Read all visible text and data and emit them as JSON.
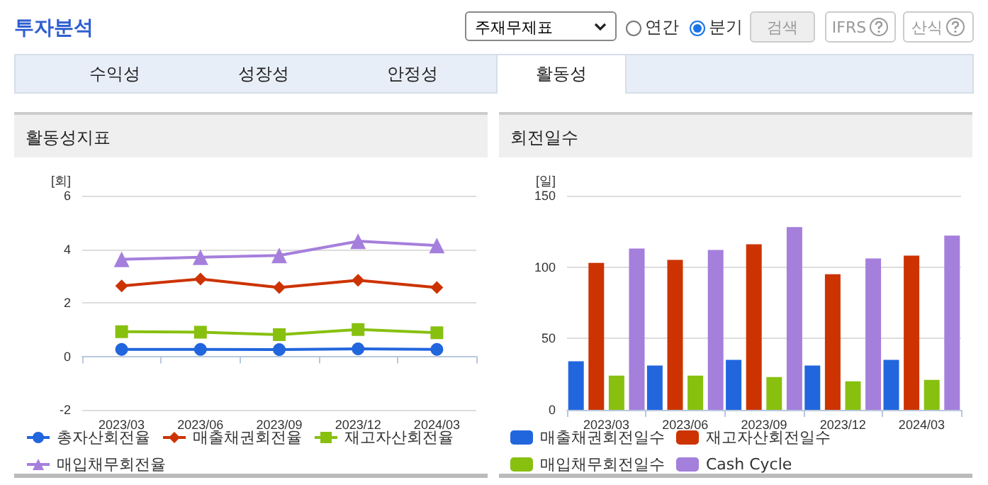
{
  "chart_data": [
    {
      "type": "other",
      "annotations": [
        "투자분석",
        "주재무제표",
        "연간",
        "분기",
        "검색",
        "IFRS",
        "산식",
        "수익성",
        "성장성",
        "안정성",
        "활동성"
      ]
    },
    {
      "type": "line",
      "title": "활동성지표",
      "ylabel": "[회]",
      "categories": [
        "2023/03",
        "2023/06",
        "2023/09",
        "2023/12",
        "2024/03"
      ],
      "series": [
        {
          "name": "총자산회전율",
          "color": "#2266dd",
          "marker": "circle",
          "values": [
            0.26,
            0.26,
            0.25,
            0.28,
            0.26
          ]
        },
        {
          "name": "매출채권회전율",
          "color": "#cc3300",
          "marker": "diamond",
          "values": [
            2.63,
            2.89,
            2.57,
            2.84,
            2.57
          ]
        },
        {
          "name": "재고자산회전율",
          "color": "#88c010",
          "marker": "square",
          "values": [
            0.92,
            0.9,
            0.81,
            1.0,
            0.88
          ]
        },
        {
          "name": "매입채무회전율",
          "color": "#a57fdc",
          "marker": "triangle",
          "values": [
            3.62,
            3.7,
            3.77,
            4.3,
            4.14
          ]
        }
      ],
      "ylim": [
        -2,
        6
      ],
      "yticks": [
        -2,
        0,
        2,
        4,
        6
      ],
      "grid": "y",
      "legend": "bottom",
      "line_style": "solid"
    },
    {
      "type": "bar",
      "title": "회전일수",
      "ylabel": "[일]",
      "categories": [
        "2023/03",
        "2023/06",
        "2023/09",
        "2023/12",
        "2024/03"
      ],
      "series": [
        {
          "name": "매출채권회전일수",
          "color": "#2266dd",
          "values": [
            34,
            31,
            35,
            31,
            35
          ]
        },
        {
          "name": "재고자산회전일수",
          "color": "#cc3300",
          "values": [
            103,
            105,
            116,
            95,
            108
          ]
        },
        {
          "name": "매입채무회전일수",
          "color": "#88c010",
          "values": [
            24,
            24,
            23,
            20,
            21
          ]
        },
        {
          "name": "Cash Cycle",
          "color": "#a57fdc",
          "values": [
            113,
            112,
            128,
            106,
            122
          ]
        }
      ],
      "ylim": [
        0,
        150
      ],
      "yticks": [
        0,
        50,
        100,
        150
      ],
      "grid": "y",
      "legend": "bottom"
    }
  ]
}
